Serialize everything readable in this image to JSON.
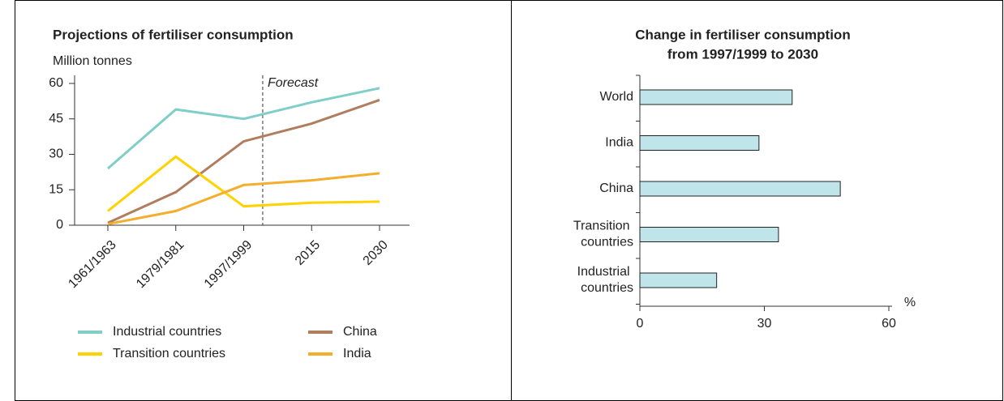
{
  "chart_data": [
    {
      "type": "line",
      "title": "Projections of fertiliser consumption",
      "y_label": "Million tonnes",
      "annotation": "Forecast",
      "categories": [
        "1961/1963",
        "1979/1981",
        "1997/1999",
        "2015",
        "2030"
      ],
      "ylim": [
        0,
        60
      ],
      "yticks": [
        0,
        15,
        30,
        45,
        60
      ],
      "series": [
        {
          "name": "Industrial countries",
          "color": "#7fcfc8",
          "values": [
            24,
            49,
            45,
            52,
            58
          ]
        },
        {
          "name": "China",
          "color": "#b07e5e",
          "values": [
            1,
            14,
            35.5,
            43,
            53
          ]
        },
        {
          "name": "Transition countries",
          "color": "#ffd200",
          "values": [
            6,
            29,
            8,
            9.5,
            10
          ]
        },
        {
          "name": "India",
          "color": "#f4ae2e",
          "values": [
            0.5,
            6,
            17,
            19,
            22
          ]
        }
      ]
    },
    {
      "type": "hbar",
      "title": [
        "Change in fertiliser consumption",
        "from 1997/1999 to 2030"
      ],
      "x_label": "%",
      "categories": [
        "World",
        "India",
        "China",
        "Transition countries",
        "Industrial countries"
      ],
      "values": [
        36.7,
        28.7,
        48.3,
        33.4,
        18.5
      ],
      "color": "#bfe4ea",
      "xlim": [
        0,
        60
      ],
      "xticks": [
        0,
        30,
        60
      ]
    }
  ]
}
